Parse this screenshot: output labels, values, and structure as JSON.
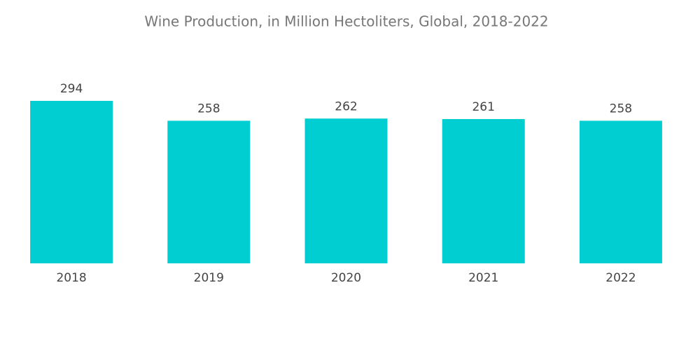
{
  "chart_data": {
    "type": "bar",
    "title": "Wine Production, in Million Hectoliters, Global, 2018-2022",
    "categories": [
      "2018",
      "2019",
      "2020",
      "2021",
      "2022"
    ],
    "values": [
      294,
      258,
      262,
      261,
      258
    ],
    "color": "#00ced1"
  }
}
